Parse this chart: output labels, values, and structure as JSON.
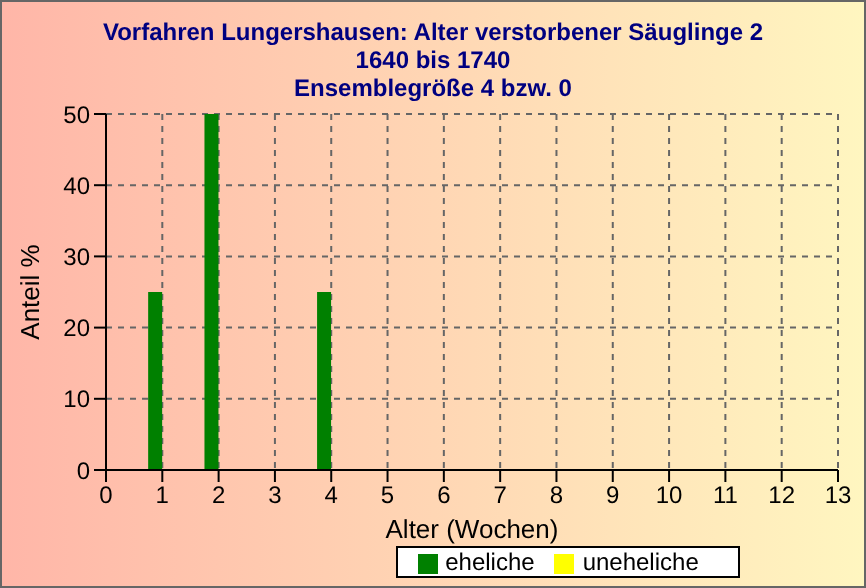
{
  "chart_data": {
    "type": "bar",
    "title": "Vorfahren Lungershausen: Alter verstorbener Säuglinge 2",
    "subtitle": "1640 bis 1740\nEnsemblegröße 4 bzw. 0",
    "xlabel": "Alter (Wochen)",
    "ylabel": "Anteil %",
    "x": [
      1,
      2,
      4
    ],
    "series": [
      {
        "name": "eheliche",
        "color": "#008000",
        "values": [
          25,
          50,
          25
        ]
      },
      {
        "name": "uneheliche",
        "color": "#ffff00",
        "values": [
          0,
          0,
          0
        ]
      }
    ],
    "xlim": [
      0,
      13
    ],
    "xticks": [
      0,
      1,
      2,
      3,
      4,
      5,
      6,
      7,
      8,
      9,
      10,
      11,
      12,
      13
    ],
    "ylim": [
      0,
      50
    ],
    "yticks": [
      0,
      10,
      20,
      30,
      40,
      50
    ],
    "grid": true,
    "legend": "bottom"
  }
}
